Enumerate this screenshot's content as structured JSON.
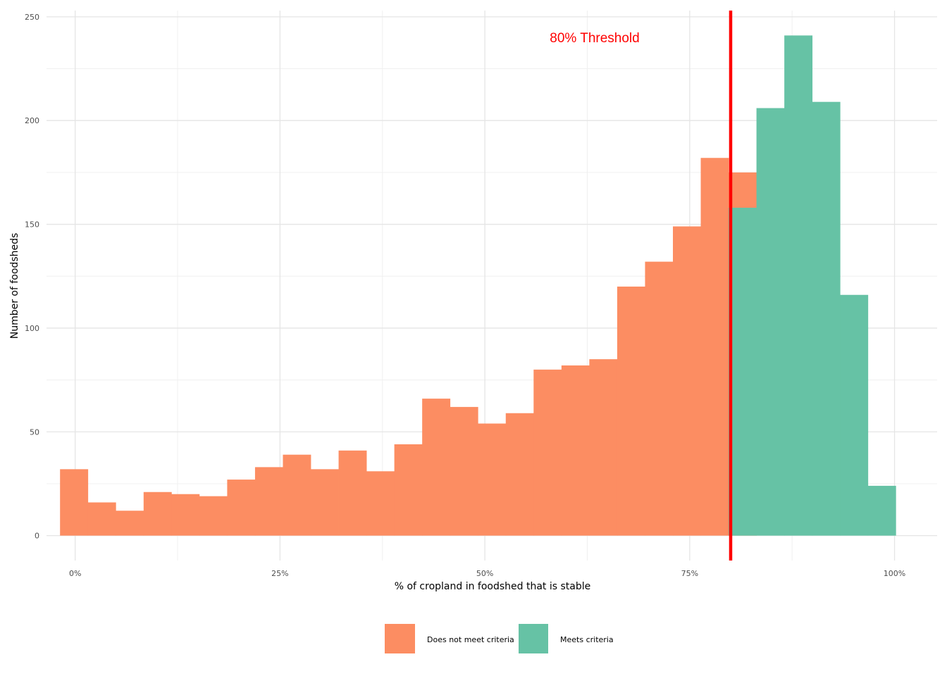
{
  "chart_data": {
    "type": "bar",
    "subtype": "histogram",
    "xlabel": "% of cropland in foodshed that is stable",
    "ylabel": "Number of foodsheds",
    "xlim": [
      -0.035,
      1.052
    ],
    "ylim": [
      -12,
      253
    ],
    "x_ticks": [
      0,
      0.25,
      0.5,
      0.75,
      1.0
    ],
    "x_tick_labels": [
      "0%",
      "25%",
      "50%",
      "75%",
      "100%"
    ],
    "y_ticks": [
      0,
      50,
      100,
      150,
      200,
      250
    ],
    "y_tick_labels": [
      "0",
      "50",
      "100",
      "150",
      "200",
      "250"
    ],
    "grid": true,
    "legend_position": "bottom",
    "threshold": {
      "x": 0.8,
      "label": "80% Threshold",
      "color": "#ff0000"
    },
    "series": [
      {
        "name": "Does not meet criteria",
        "color": "#fc8d62",
        "bins": [
          {
            "x0": -0.0185,
            "x1": 0.0155,
            "count": 32
          },
          {
            "x0": 0.0155,
            "x1": 0.0495,
            "count": 16
          },
          {
            "x0": 0.0495,
            "x1": 0.0835,
            "count": 12
          },
          {
            "x0": 0.0835,
            "x1": 0.1175,
            "count": 21
          },
          {
            "x0": 0.1175,
            "x1": 0.1515,
            "count": 20
          },
          {
            "x0": 0.1515,
            "x1": 0.1855,
            "count": 19
          },
          {
            "x0": 0.1855,
            "x1": 0.2195,
            "count": 27
          },
          {
            "x0": 0.2195,
            "x1": 0.2535,
            "count": 33
          },
          {
            "x0": 0.2535,
            "x1": 0.2875,
            "count": 39
          },
          {
            "x0": 0.2875,
            "x1": 0.3215,
            "count": 32
          },
          {
            "x0": 0.3215,
            "x1": 0.3555,
            "count": 41
          },
          {
            "x0": 0.3555,
            "x1": 0.3895,
            "count": 31
          },
          {
            "x0": 0.3895,
            "x1": 0.4235,
            "count": 44
          },
          {
            "x0": 0.4235,
            "x1": 0.4575,
            "count": 66
          },
          {
            "x0": 0.4575,
            "x1": 0.4915,
            "count": 62
          },
          {
            "x0": 0.4915,
            "x1": 0.5255,
            "count": 54
          },
          {
            "x0": 0.5255,
            "x1": 0.5595,
            "count": 59
          },
          {
            "x0": 0.5595,
            "x1": 0.5935,
            "count": 80
          },
          {
            "x0": 0.5935,
            "x1": 0.6275,
            "count": 82
          },
          {
            "x0": 0.6275,
            "x1": 0.6615,
            "count": 85
          },
          {
            "x0": 0.6615,
            "x1": 0.6955,
            "count": 120
          },
          {
            "x0": 0.6955,
            "x1": 0.7295,
            "count": 132
          },
          {
            "x0": 0.7295,
            "x1": 0.7635,
            "count": 149
          },
          {
            "x0": 0.7635,
            "x1": 0.7975,
            "count": 182
          },
          {
            "x0": 0.7975,
            "x1": 0.8315,
            "count": 175
          }
        ]
      },
      {
        "name": "Meets criteria",
        "color": "#66c2a5",
        "bins": [
          {
            "x0": 0.7975,
            "x1": 0.8315,
            "count": 158
          },
          {
            "x0": 0.8315,
            "x1": 0.8655,
            "count": 206
          },
          {
            "x0": 0.8655,
            "x1": 0.8995,
            "count": 241
          },
          {
            "x0": 0.8995,
            "x1": 0.9335,
            "count": 209
          },
          {
            "x0": 0.9335,
            "x1": 0.9675,
            "count": 116
          },
          {
            "x0": 0.9675,
            "x1": 1.0015,
            "count": 24
          }
        ]
      }
    ]
  },
  "legend": {
    "items": [
      {
        "label": "Does not meet criteria",
        "color": "#fc8d62"
      },
      {
        "label": "Meets criteria",
        "color": "#66c2a5"
      }
    ]
  }
}
